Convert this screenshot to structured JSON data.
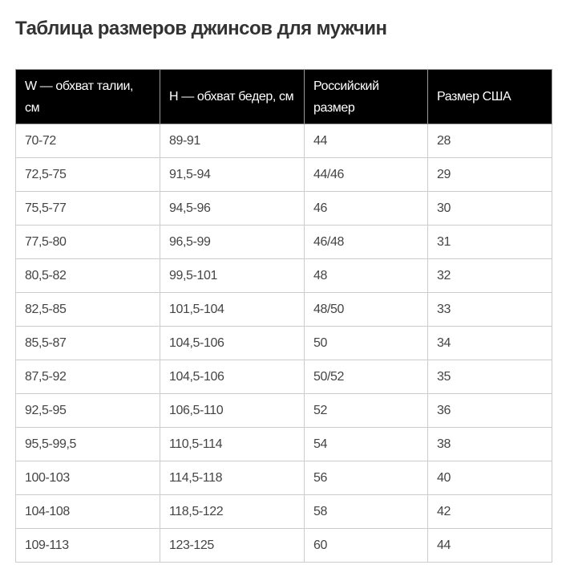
{
  "title": "Таблица размеров джинсов для мужчин",
  "table": {
    "headers": [
      "W — обхват талии, см",
      "H — обхват бедер, см",
      "Российский размер",
      "Размер США"
    ],
    "rows": [
      [
        "70-72",
        "89-91",
        "44",
        "28"
      ],
      [
        "72,5-75",
        "91,5-94",
        "44/46",
        "29"
      ],
      [
        "75,5-77",
        "94,5-96",
        "46",
        "30"
      ],
      [
        "77,5-80",
        "96,5-99",
        "46/48",
        "31"
      ],
      [
        "80,5-82",
        "99,5-101",
        "48",
        "32"
      ],
      [
        "82,5-85",
        "101,5-104",
        "48/50",
        "33"
      ],
      [
        "85,5-87",
        "104,5-106",
        "50",
        "34"
      ],
      [
        "87,5-92",
        "104,5-106",
        "50/52",
        "35"
      ],
      [
        "92,5-95",
        "106,5-110",
        "52",
        "36"
      ],
      [
        "95,5-99,5",
        "110,5-114",
        "54",
        "38"
      ],
      [
        "100-103",
        "114,5-118",
        "56",
        "40"
      ],
      [
        "104-108",
        "118,5-122",
        "58",
        "42"
      ],
      [
        "109-113",
        "123-125",
        "60",
        "44"
      ]
    ]
  }
}
